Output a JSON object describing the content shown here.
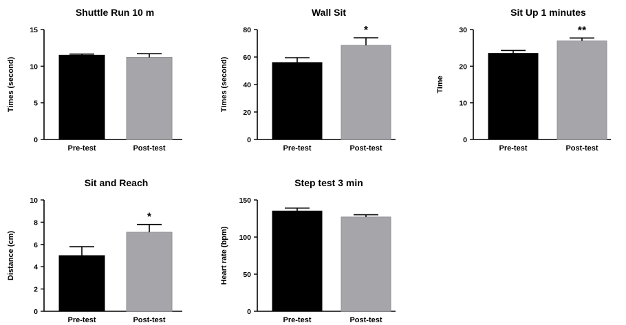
{
  "chart_data": [
    {
      "type": "bar",
      "title": "Shuttle Run 10 m",
      "ylabel": "Times (second)",
      "categories": [
        "Pre-test",
        "Post-test"
      ],
      "values": [
        11.5,
        11.2
      ],
      "errors": [
        0.15,
        0.5
      ],
      "annotations": [
        "",
        ""
      ],
      "ylim": [
        0,
        15
      ],
      "yticks": [
        0,
        5,
        10,
        15
      ],
      "colors": [
        "#000000",
        "#a5a5aa"
      ]
    },
    {
      "type": "bar",
      "title": "Wall Sit",
      "ylabel": "Times (second)",
      "categories": [
        "Pre-test",
        "Post-test"
      ],
      "values": [
        56,
        68.5
      ],
      "errors": [
        3.5,
        5.5
      ],
      "annotations": [
        "",
        "*"
      ],
      "ylim": [
        0,
        80
      ],
      "yticks": [
        0,
        20,
        40,
        60,
        80
      ],
      "colors": [
        "#000000",
        "#a5a5aa"
      ]
    },
    {
      "type": "bar",
      "title": "Sit Up 1 minutes",
      "ylabel": "Time",
      "categories": [
        "Pre-test",
        "Post-test"
      ],
      "values": [
        23.5,
        26.9
      ],
      "errors": [
        0.8,
        0.8
      ],
      "annotations": [
        "",
        "**"
      ],
      "ylim": [
        0,
        30
      ],
      "yticks": [
        0,
        10,
        20,
        30
      ],
      "colors": [
        "#000000",
        "#a5a5aa"
      ]
    },
    {
      "type": "bar",
      "title": "Sit and Reach",
      "ylabel": "Distance (cm)",
      "categories": [
        "Pre-test",
        "Post-test"
      ],
      "values": [
        5.0,
        7.1
      ],
      "errors": [
        0.8,
        0.7
      ],
      "annotations": [
        "",
        "*"
      ],
      "ylim": [
        0,
        10
      ],
      "yticks": [
        0,
        2,
        4,
        6,
        8,
        10
      ],
      "colors": [
        "#000000",
        "#a5a5aa"
      ]
    },
    {
      "type": "bar",
      "title": "Step test 3 min",
      "ylabel": "Heart rate (bpm)",
      "categories": [
        "Pre-test",
        "Post-test"
      ],
      "values": [
        135,
        127
      ],
      "errors": [
        4,
        3
      ],
      "annotations": [
        "",
        ""
      ],
      "ylim": [
        0,
        150
      ],
      "yticks": [
        0,
        50,
        100,
        150
      ],
      "colors": [
        "#000000",
        "#a5a5aa"
      ]
    }
  ]
}
